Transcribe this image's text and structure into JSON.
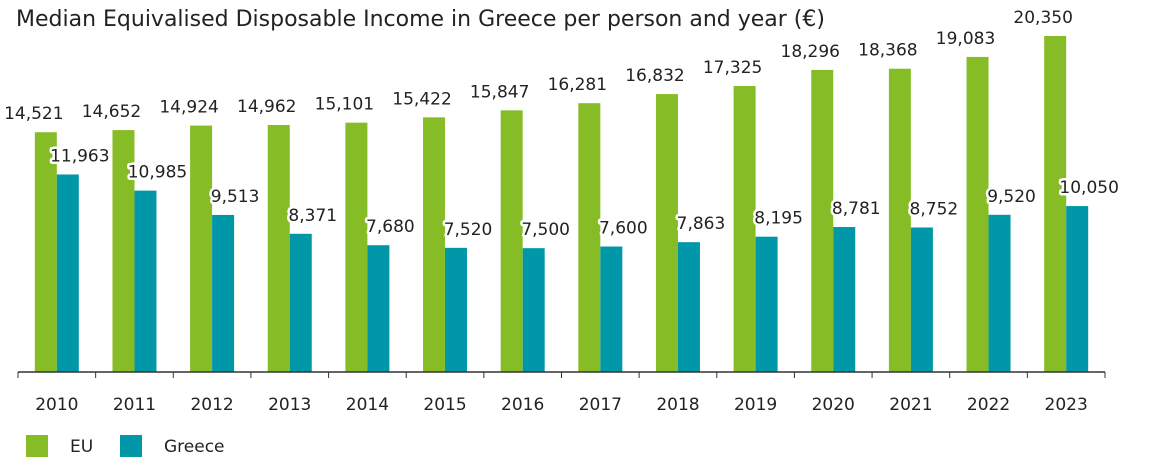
{
  "chart_data": {
    "type": "bar",
    "title": "Median Equivalised Disposable Income in Greece per person and year (€)",
    "categories": [
      "2010",
      "2011",
      "2012",
      "2013",
      "2014",
      "2015",
      "2016",
      "2017",
      "2018",
      "2019",
      "2020",
      "2021",
      "2022",
      "2023"
    ],
    "series": [
      {
        "name": "EU",
        "color": "#86bc25",
        "values": [
          14521,
          14652,
          14924,
          14962,
          15101,
          15422,
          15847,
          16281,
          16832,
          17325,
          18296,
          18368,
          19083,
          20350
        ],
        "value_labels": [
          "14,521",
          "14,652",
          "14,924",
          "14,962",
          "15,101",
          "15,422",
          "15,847",
          "16,281",
          "16,832",
          "17,325",
          "18,296",
          "18,368",
          "19,083",
          "20,350"
        ]
      },
      {
        "name": "Greece",
        "color": "#0097a9",
        "values": [
          11963,
          10985,
          9513,
          8371,
          7680,
          7520,
          7500,
          7600,
          7863,
          8195,
          8781,
          8752,
          9520,
          10050
        ],
        "value_labels": [
          "11,963",
          "10,985",
          "9,513",
          "8,371",
          "7,680",
          "7,520",
          "7,500",
          "7,600",
          "7,863",
          "8,195",
          "8,781",
          "8,752",
          "9,520",
          "10,050"
        ]
      }
    ],
    "legend": "bottom-left"
  }
}
